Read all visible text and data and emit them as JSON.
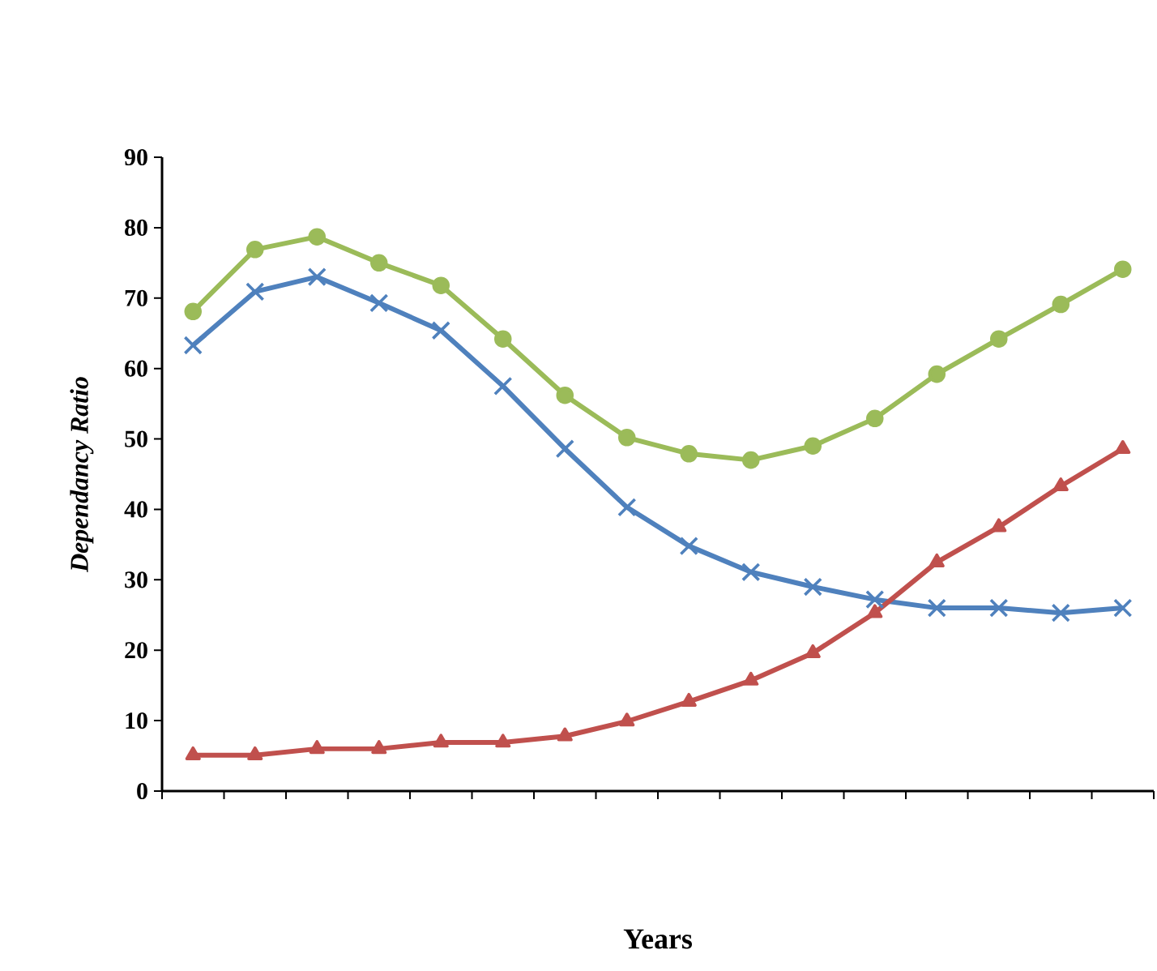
{
  "chart_data": {
    "type": "line",
    "xlabel": "Years",
    "ylabel": "Dependancy Ratio",
    "categories": [
      null,
      null,
      null,
      null,
      null,
      null,
      null,
      null,
      null,
      null,
      null,
      null,
      null,
      null,
      null,
      null
    ],
    "ylim": [
      0,
      90
    ],
    "yticks": [
      0,
      10,
      20,
      30,
      40,
      50,
      60,
      70,
      80,
      90
    ],
    "series": [
      {
        "color": "#9bbb59",
        "marker": "circle",
        "values": [
          68.1,
          76.9,
          78.7,
          75.0,
          71.8,
          64.2,
          56.2,
          50.2,
          47.9,
          47.0,
          49.0,
          52.9,
          59.2,
          64.2,
          69.1,
          74.1
        ]
      },
      {
        "color": "#4f81bd",
        "marker": "cross",
        "values": [
          63.3,
          70.9,
          73.0,
          69.3,
          65.4,
          57.5,
          48.6,
          40.3,
          34.8,
          31.1,
          29.0,
          27.2,
          26.0,
          26.0,
          25.3,
          26.0
        ]
      },
      {
        "color": "#c0504d",
        "marker": "triangle",
        "values": [
          5.1,
          5.1,
          6.0,
          6.0,
          6.9,
          6.9,
          7.8,
          9.9,
          12.7,
          15.7,
          19.6,
          25.3,
          32.5,
          37.5,
          43.3,
          48.6
        ]
      }
    ]
  }
}
